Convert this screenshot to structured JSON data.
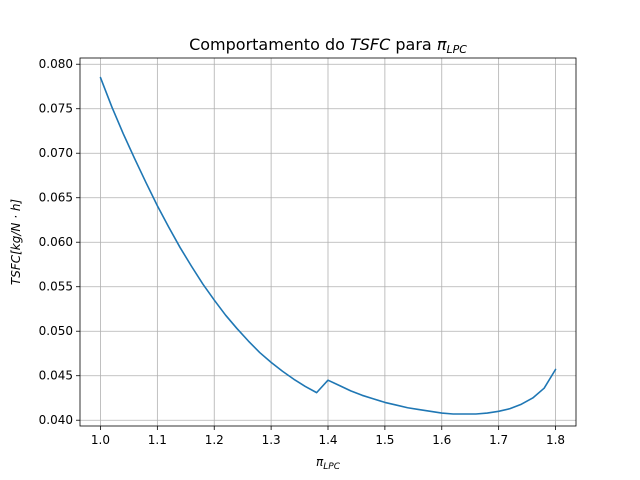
{
  "chart_data": {
    "type": "line",
    "title_parts": [
      {
        "text": "Comportamento do ",
        "italic": false
      },
      {
        "text": "TSFC",
        "italic": true
      },
      {
        "text": " para ",
        "italic": false
      },
      {
        "text": "π",
        "italic": true
      },
      {
        "text": "LPC",
        "italic": true,
        "sub": true
      }
    ],
    "xlabel_main": "π",
    "xlabel_sub": "LPC",
    "ylabel": "TSFC[kg/N · h]",
    "xlim": [
      0.964,
      1.836
    ],
    "ylim": [
      0.03935,
      0.0807
    ],
    "xticks": [
      1.0,
      1.1,
      1.2,
      1.3,
      1.4,
      1.5,
      1.6,
      1.7,
      1.8
    ],
    "xtick_labels": [
      "1.0",
      "1.1",
      "1.2",
      "1.3",
      "1.4",
      "1.5",
      "1.6",
      "1.7",
      "1.8"
    ],
    "yticks": [
      0.04,
      0.045,
      0.05,
      0.055,
      0.06,
      0.065,
      0.07,
      0.075,
      0.08
    ],
    "ytick_labels": [
      "0.040",
      "0.045",
      "0.050",
      "0.055",
      "0.060",
      "0.065",
      "0.070",
      "0.075",
      "0.080"
    ],
    "grid": true,
    "series_color": "#1f77b4",
    "series": [
      {
        "x": [
          1.0,
          1.02,
          1.04,
          1.06,
          1.08,
          1.1,
          1.12,
          1.14,
          1.16,
          1.18,
          1.2,
          1.22,
          1.24,
          1.26,
          1.28,
          1.3,
          1.32,
          1.34,
          1.36,
          1.38,
          1.4,
          1.42,
          1.44,
          1.46,
          1.48,
          1.5,
          1.52,
          1.54,
          1.56,
          1.58,
          1.6,
          1.62,
          1.64,
          1.66,
          1.68,
          1.7,
          1.72,
          1.74,
          1.76,
          1.78,
          1.8
        ],
        "y": [
          0.0785,
          0.0752,
          0.0722,
          0.0694,
          0.0667,
          0.0641,
          0.0617,
          0.0594,
          0.0573,
          0.0553,
          0.0535,
          0.0518,
          0.0503,
          0.0489,
          0.0476,
          0.0465,
          0.0455,
          0.0446,
          0.0438,
          0.0431,
          0.0445,
          0.0439,
          0.0433,
          0.0428,
          0.0424,
          0.042,
          0.0417,
          0.0414,
          0.0412,
          0.041,
          0.0408,
          0.0407,
          0.0407,
          0.0407,
          0.0408,
          0.041,
          0.0413,
          0.0418,
          0.0425,
          0.0436,
          0.0457
        ]
      }
    ]
  }
}
